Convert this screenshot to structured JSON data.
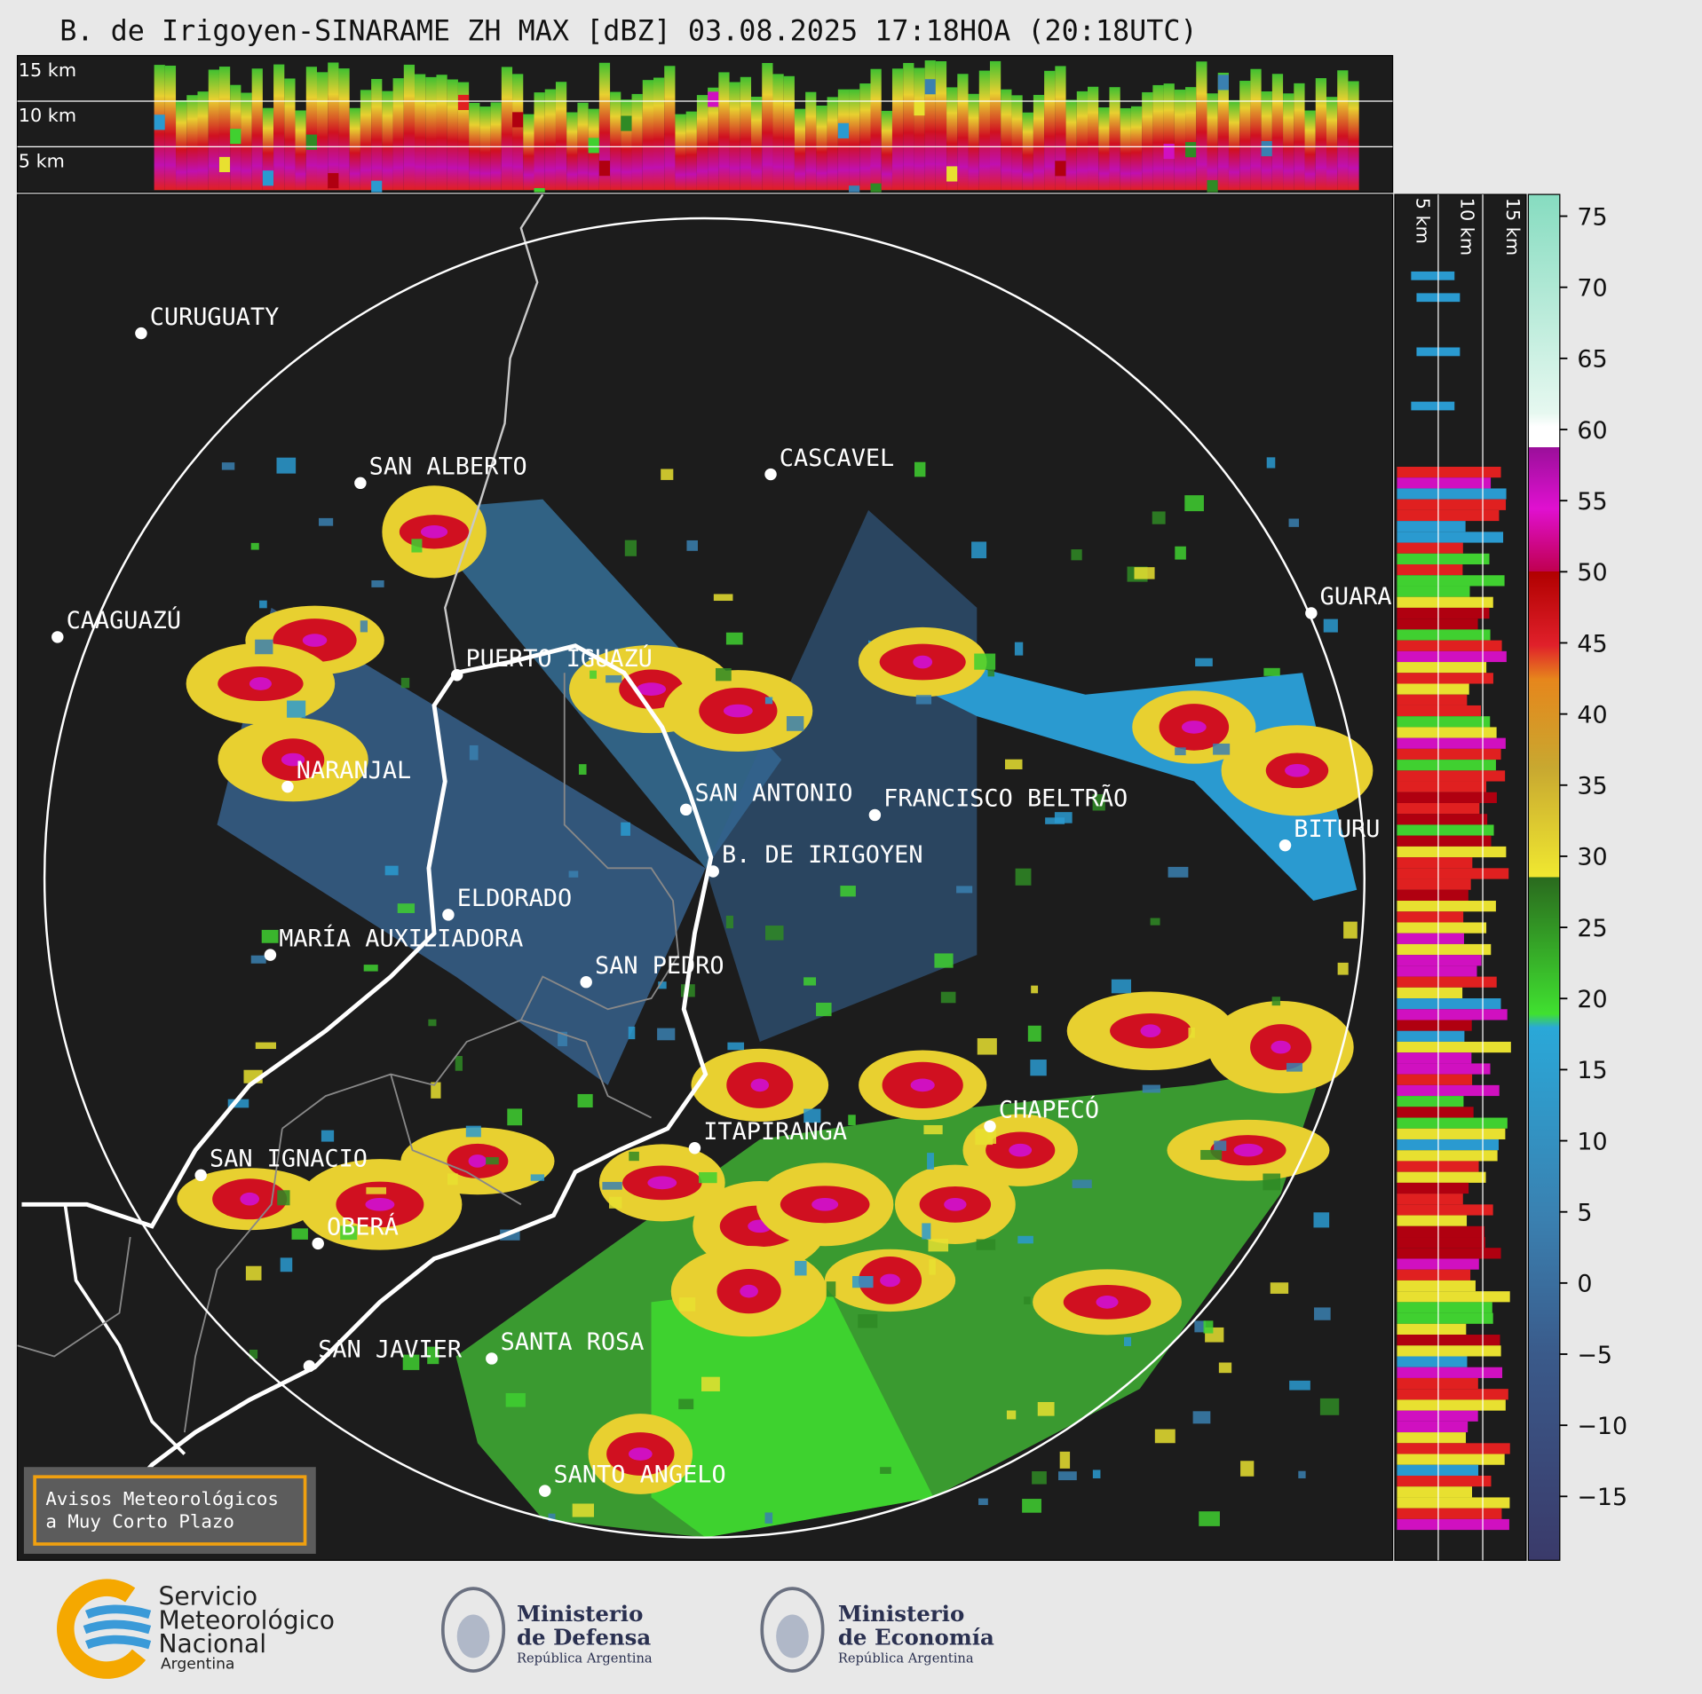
{
  "header": {
    "title": "B. de Irigoyen-SINARAME ZH MAX [dBZ] 03.08.2025 17:18HOA (20:18UTC)"
  },
  "top_panel": {
    "labels": [
      "15 km",
      "10 km",
      "5 km"
    ]
  },
  "side_panel": {
    "labels": [
      "5 km",
      "10 km",
      "15 km"
    ]
  },
  "colorbar": {
    "ticks": [
      "75",
      "70",
      "65",
      "60",
      "55",
      "50",
      "45",
      "40",
      "35",
      "30",
      "25",
      "20",
      "15",
      "10",
      "5",
      "0",
      "−5",
      "−10",
      "−15"
    ]
  },
  "cities": [
    {
      "name": "CURUGUATY"
    },
    {
      "name": "SAN ALBERTO"
    },
    {
      "name": "CASCAVEL"
    },
    {
      "name": "CAAGUAZÚ"
    },
    {
      "name": "GUARA"
    },
    {
      "name": "PUERTO IGUAZÚ"
    },
    {
      "name": "NARANJAL"
    },
    {
      "name": "SAN ANTONIO"
    },
    {
      "name": "FRANCISCO BELTRÃO"
    },
    {
      "name": "BITURU"
    },
    {
      "name": "B. DE IRIGOYEN"
    },
    {
      "name": "ELDORADO"
    },
    {
      "name": "MARÍA AUXILIADORA"
    },
    {
      "name": "SAN PEDRO"
    },
    {
      "name": "CHAPECÓ"
    },
    {
      "name": "ITAPIRANGA"
    },
    {
      "name": "SAN IGNACIO"
    },
    {
      "name": "OBERÁ"
    },
    {
      "name": "SAN JAVIER"
    },
    {
      "name": "SANTA ROSA"
    },
    {
      "name": "SANTO ANGELO"
    }
  ],
  "warning_box": {
    "lines": [
      "Avisos Meteorológicos",
      "a Muy Corto Plazo"
    ]
  },
  "footer": {
    "smn": [
      "Servicio",
      "Meteorológico",
      "Nacional",
      "Argentina"
    ],
    "defensa": [
      "Ministerio",
      "de Defensa",
      "República Argentina"
    ],
    "economia": [
      "Ministerio",
      "de Economía",
      "República Argentina"
    ]
  }
}
